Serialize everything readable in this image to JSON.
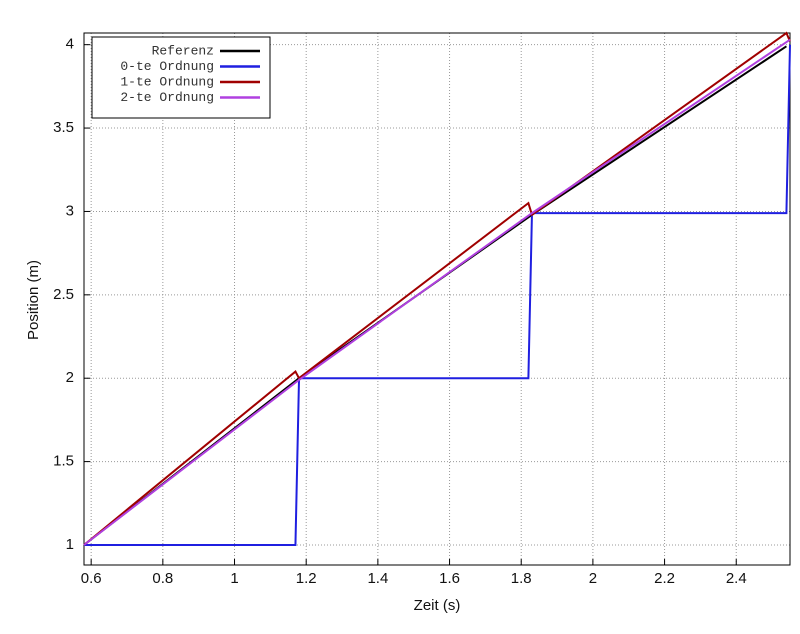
{
  "chart_data": {
    "type": "line",
    "xlabel": "Zeit (s)",
    "ylabel": "Position (m)",
    "xlim": [
      0.58,
      2.55
    ],
    "xticks": [
      0.6,
      0.8,
      1,
      1.2,
      1.4,
      1.6,
      1.8,
      2,
      2.2,
      2.4
    ],
    "ylim": [
      0.88,
      4.07
    ],
    "yticks": [
      1,
      1.5,
      2,
      2.5,
      3,
      3.5,
      4
    ],
    "grid": true,
    "legend": "upper-left",
    "series": [
      {
        "name": "Referenz",
        "color": "#000000",
        "x": [
          0.58,
          1.18,
          1.83,
          2.54
        ],
        "values": [
          1,
          2,
          2.98,
          3.99
        ]
      },
      {
        "name": "0-te Ordnung",
        "color": "#1f1fe0",
        "x": [
          0.58,
          1.17,
          1.18,
          1.82,
          1.83,
          2.54,
          2.55
        ],
        "values": [
          1,
          1,
          2,
          2,
          2.99,
          2.99,
          4
        ]
      },
      {
        "name": "1-te Ordnung",
        "color": "#a00000",
        "x": [
          0.58,
          1.17,
          1.18,
          1.82,
          1.83,
          2.54,
          2.55
        ],
        "values": [
          1,
          2.04,
          2,
          3.05,
          2.98,
          4.07,
          4.02
        ]
      },
      {
        "name": "2-te Ordnung",
        "color": "#b040e0",
        "x": [
          0.58,
          1.18,
          1.83,
          2.55
        ],
        "values": [
          1,
          1.99,
          2.99,
          4.03
        ]
      }
    ]
  }
}
